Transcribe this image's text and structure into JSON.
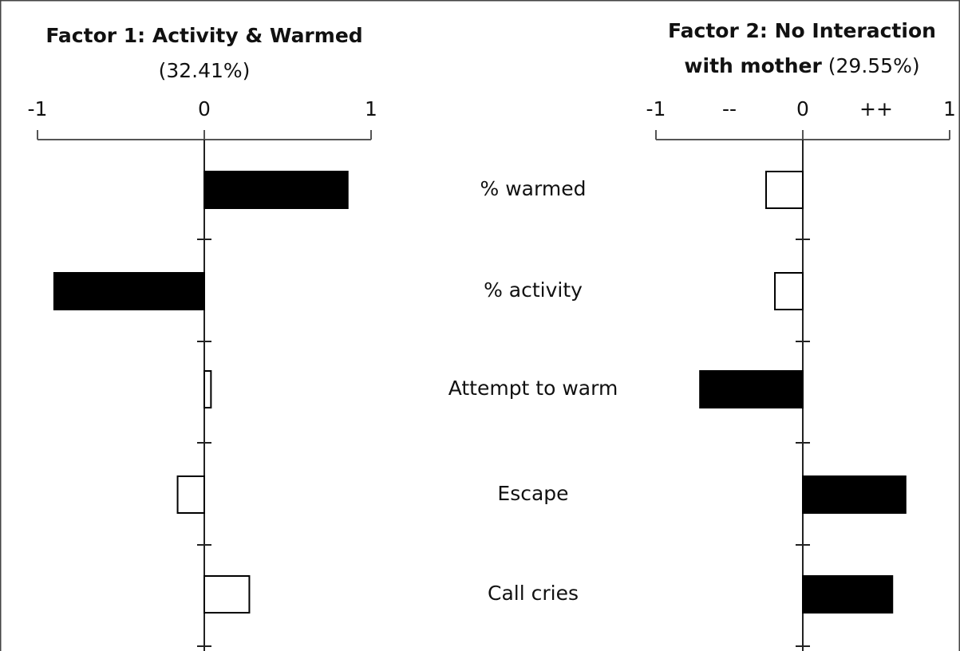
{
  "chart_data": [
    {
      "type": "bar",
      "orientation": "horizontal",
      "title": "Factor 1: Activity & Warmed",
      "subtitle": "(32.41%)",
      "categories": [
        "% warmed",
        "% activity",
        "Attempt to warm",
        "Escape",
        "Call cries"
      ],
      "values": [
        0.86,
        -0.9,
        0.04,
        -0.16,
        0.27
      ],
      "colors": [
        "#000000",
        "#000000",
        "#ffffff",
        "#ffffff",
        "#ffffff"
      ],
      "xlim": [
        -1,
        1
      ],
      "xticks": [
        -1,
        0,
        1
      ]
    },
    {
      "type": "bar",
      "orientation": "horizontal",
      "title": [
        "Factor 2: No Interaction",
        "with mother"
      ],
      "subtitle": "(29.55%)",
      "values": [
        -0.25,
        -0.19,
        -0.7,
        0.7,
        0.61
      ],
      "colors": [
        "#ffffff",
        "#ffffff",
        "#000000",
        "#000000",
        "#000000"
      ],
      "xlim": [
        -1,
        1
      ],
      "xticks": [
        -1,
        {
          "value": -0.5,
          "label": "--"
        },
        0,
        {
          "value": 0.5,
          "label": "++"
        },
        1
      ]
    }
  ]
}
